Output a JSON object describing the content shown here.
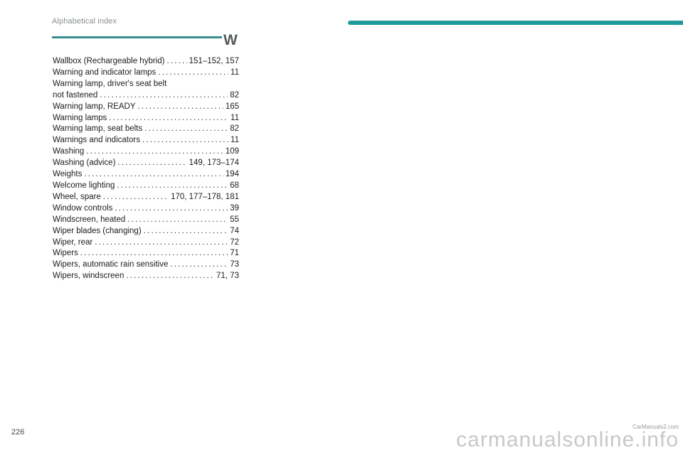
{
  "header": {
    "title": "Alphabetical index"
  },
  "section": {
    "letter": "W"
  },
  "entries": [
    {
      "label": "Wallbox (Rechargeable hybrid)",
      "pages": "151–152, 157"
    },
    {
      "label": "Warning and indicator lamps",
      "pages": "11"
    },
    {
      "label": "Warning lamp, driver's seat belt",
      "pages": ""
    },
    {
      "label": "not fastened",
      "pages": "82"
    },
    {
      "label": "Warning lamp, READY",
      "pages": "165"
    },
    {
      "label": "Warning lamps",
      "pages": "11"
    },
    {
      "label": "Warning lamp, seat belts",
      "pages": "82"
    },
    {
      "label": "Warnings and indicators",
      "pages": "11"
    },
    {
      "label": "Washing",
      "pages": "109"
    },
    {
      "label": "Washing (advice)",
      "pages": "149, 173–174"
    },
    {
      "label": "Weights",
      "pages": "194"
    },
    {
      "label": "Welcome lighting",
      "pages": "68"
    },
    {
      "label": "Wheel, spare",
      "pages": "170, 177–178, 181"
    },
    {
      "label": "Window controls",
      "pages": "39"
    },
    {
      "label": "Windscreen, heated",
      "pages": "55"
    },
    {
      "label": "Wiper blades (changing)",
      "pages": "74"
    },
    {
      "label": "Wiper, rear",
      "pages": "72"
    },
    {
      "label": "Wipers",
      "pages": "71"
    },
    {
      "label": "Wipers, automatic rain sensitive",
      "pages": "73"
    },
    {
      "label": "Wipers, windscreen",
      "pages": "71, 73"
    }
  ],
  "footer": {
    "page_number": "226",
    "watermark": "carmanualsonline.info",
    "watermark_small": "CarManuals2.com"
  },
  "colors": {
    "accent": "#1f9a9a",
    "rule": "#3b8c8c"
  }
}
